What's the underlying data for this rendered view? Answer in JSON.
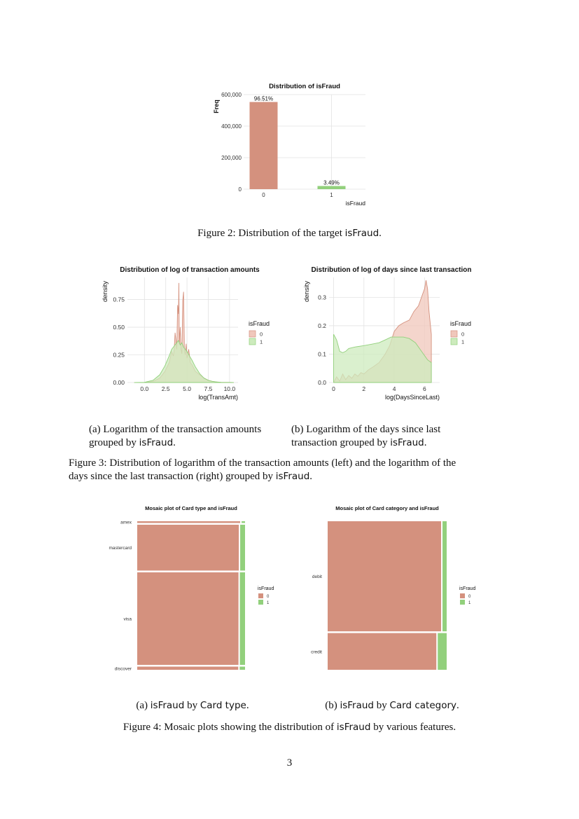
{
  "figures": {
    "fig2": {
      "caption_prefix": "Figure 2: Distribution of the target ",
      "caption_var": "isFraud",
      "caption_suffix": "."
    },
    "fig3": {
      "subcap_a_1": "(a) Logarithm of the transaction amounts",
      "subcap_a_2_prefix": "grouped by ",
      "subcap_a_2_var": "isFraud",
      "subcap_a_2_suffix": ".",
      "subcap_b_1": "(b) Logarithm of the days since last",
      "subcap_b_2_prefix": "transaction grouped by ",
      "subcap_b_2_var": "isFraud",
      "subcap_b_2_suffix": ".",
      "caption_line1": "Figure 3: Distribution of logarithm of the transaction amounts (left) and the logarithm of the",
      "caption_line2_prefix": "days since the last transaction (right) grouped by ",
      "caption_line2_var": "isFraud",
      "caption_line2_suffix": "."
    },
    "fig4": {
      "subcap_a_prefix": "(a) ",
      "subcap_a_var1": "isFraud",
      "subcap_a_mid": " by ",
      "subcap_a_var2": "Card type",
      "subcap_a_suffix": ".",
      "subcap_b_prefix": "(b) ",
      "subcap_b_var1": "isFraud",
      "subcap_b_mid": " by ",
      "subcap_b_var2": "Card category",
      "subcap_b_suffix": ".",
      "caption_prefix": "Figure 4: Mosaic plots showing the distribution of ",
      "caption_var": "isFraud",
      "caption_suffix": " by various features."
    }
  },
  "page_number": "3",
  "colors": {
    "class0": "#d4917e",
    "class1": "#92d07c",
    "class0_fill": "#f0c7bb",
    "class1_fill": "#cdebbd",
    "grid": "#e3e3e3",
    "text": "#333333"
  },
  "chart_data": [
    {
      "type": "bar",
      "title": "Distribution of isFraud",
      "xlabel": "isFraud",
      "ylabel": "Freq",
      "categories": [
        "0",
        "1"
      ],
      "values": [
        553000,
        20000
      ],
      "data_labels": [
        "96.51%",
        "3.49%"
      ],
      "ylim": [
        0,
        600000
      ],
      "yticks": [
        0,
        200000,
        400000,
        600000
      ],
      "ytick_labels": [
        "0",
        "200,000",
        "400,000",
        "600,000"
      ],
      "grid": true
    },
    {
      "type": "area",
      "title": "Distribution of log of transaction amounts",
      "xlabel": "log(TransAmt)",
      "ylabel": "density",
      "xlim": [
        -2,
        11
      ],
      "ylim": [
        0,
        0.95
      ],
      "xticks": [
        0,
        2.5,
        5,
        7.5,
        10
      ],
      "xtick_labels": [
        "0.0",
        "2.5",
        "5.0",
        "7.5",
        "10.0"
      ],
      "yticks": [
        0,
        0.25,
        0.5,
        0.75
      ],
      "ytick_labels": [
        "0.00",
        "0.25",
        "0.50",
        "0.75"
      ],
      "legend_title": "isFraud",
      "legend_position": "right",
      "series": [
        {
          "name": "0",
          "x": [
            -1.2,
            0,
            1,
            1.8,
            2.4,
            2.9,
            3.2,
            3.4,
            3.5,
            3.6,
            3.7,
            3.8,
            3.9,
            4.0,
            4.05,
            4.1,
            4.2,
            4.3,
            4.4,
            4.5,
            4.6,
            4.7,
            4.8,
            4.9,
            5.0,
            5.2,
            5.4,
            5.6,
            5.8,
            6.0,
            6.5,
            7.0,
            7.5,
            8.0,
            8.5,
            9.0,
            10.0,
            10.5
          ],
          "y": [
            0,
            0.001,
            0.01,
            0.04,
            0.1,
            0.18,
            0.28,
            0.24,
            0.3,
            0.45,
            0.38,
            0.3,
            0.7,
            0.62,
            0.9,
            0.35,
            0.5,
            0.3,
            0.26,
            0.74,
            0.82,
            0.3,
            0.25,
            0.35,
            0.22,
            0.3,
            0.18,
            0.16,
            0.13,
            0.1,
            0.07,
            0.04,
            0.02,
            0.01,
            0.005,
            0.002,
            0.001,
            0
          ]
        },
        {
          "name": "1",
          "x": [
            -1.2,
            0,
            1,
            1.8,
            2.4,
            2.9,
            3.2,
            3.5,
            3.8,
            4.0,
            4.2,
            4.4,
            4.6,
            4.8,
            5.0,
            5.3,
            5.6,
            6.0,
            6.5,
            7.0,
            7.5,
            8.0,
            8.5,
            9.0,
            10.0,
            10.5
          ],
          "y": [
            0,
            0.002,
            0.02,
            0.07,
            0.15,
            0.24,
            0.3,
            0.33,
            0.36,
            0.38,
            0.34,
            0.36,
            0.32,
            0.3,
            0.28,
            0.24,
            0.2,
            0.14,
            0.08,
            0.04,
            0.02,
            0.01,
            0.005,
            0.002,
            0.001,
            0
          ]
        }
      ]
    },
    {
      "type": "area",
      "title": "Distribution of log of days since last transaction",
      "xlabel": "log(DaysSinceLast)",
      "ylabel": "density",
      "xlim": [
        -0.3,
        7.0
      ],
      "ylim": [
        0,
        0.37
      ],
      "xticks": [
        0,
        2,
        4,
        6
      ],
      "xtick_labels": [
        "0",
        "2",
        "4",
        "6"
      ],
      "yticks": [
        0,
        0.1,
        0.2,
        0.3
      ],
      "ytick_labels": [
        "0.0",
        "0.1",
        "0.2",
        "0.3"
      ],
      "legend_title": "isFraud",
      "legend_position": "right",
      "series": [
        {
          "name": "0",
          "x": [
            0,
            0.2,
            0.4,
            0.6,
            0.8,
            1.0,
            1.2,
            1.4,
            1.6,
            1.8,
            2.0,
            2.3,
            2.6,
            3.0,
            3.4,
            3.7,
            4.0,
            4.3,
            4.6,
            5.0,
            5.3,
            5.6,
            5.8,
            6.0,
            6.1,
            6.2,
            6.3,
            6.45
          ],
          "y": [
            0,
            0.02,
            0.005,
            0.03,
            0.01,
            0.025,
            0.015,
            0.03,
            0.022,
            0.035,
            0.03,
            0.045,
            0.055,
            0.07,
            0.1,
            0.13,
            0.18,
            0.2,
            0.21,
            0.22,
            0.25,
            0.27,
            0.3,
            0.33,
            0.36,
            0.33,
            0.25,
            0.17
          ]
        },
        {
          "name": "1",
          "x": [
            0,
            0.2,
            0.4,
            0.6,
            0.8,
            1.0,
            1.4,
            2.0,
            2.5,
            3.0,
            3.4,
            3.8,
            4.2,
            4.6,
            5.0,
            5.4,
            5.8,
            6.2,
            6.45
          ],
          "y": [
            0.17,
            0.15,
            0.11,
            0.105,
            0.11,
            0.12,
            0.125,
            0.13,
            0.135,
            0.14,
            0.15,
            0.16,
            0.16,
            0.16,
            0.155,
            0.14,
            0.11,
            0.08,
            0.07
          ]
        }
      ]
    },
    {
      "type": "mosaic",
      "title": "Mosaic plot of Card type and isFraud",
      "categories": [
        "amex",
        "mastercard",
        "visa",
        "discover"
      ],
      "category_share": [
        0.012,
        0.32,
        0.646,
        0.022
      ],
      "fraud_share": [
        0.032,
        0.045,
        0.048,
        0.05
      ],
      "legend_title": "isFraud",
      "legend_entries": [
        "0",
        "1"
      ],
      "legend_position": "right"
    },
    {
      "type": "mosaic",
      "title": "Mosaic plot of Card category and isFraud",
      "categories": [
        "debit",
        "credit"
      ],
      "category_share": [
        0.75,
        0.25
      ],
      "fraud_share": [
        0.035,
        0.075
      ],
      "legend_title": "isFraud",
      "legend_entries": [
        "0",
        "1"
      ],
      "legend_position": "right"
    }
  ]
}
